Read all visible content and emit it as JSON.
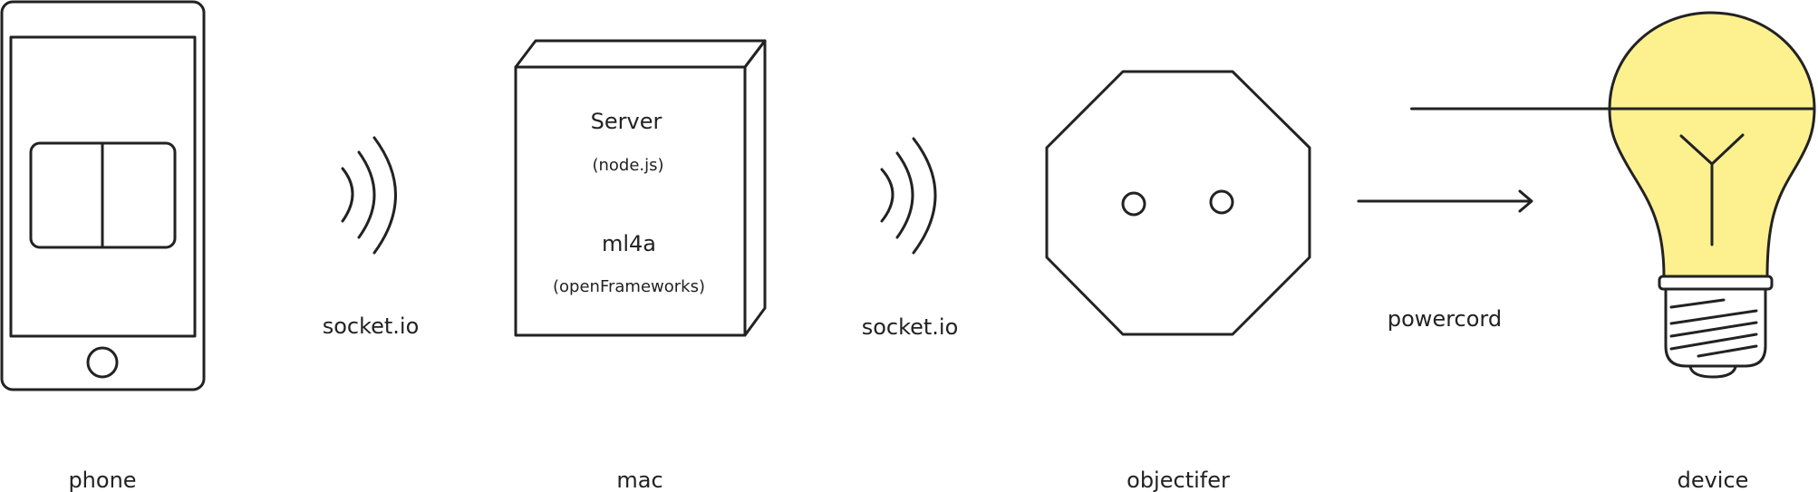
{
  "nodes": {
    "phone": {
      "label": "phone"
    },
    "mac": {
      "label": "mac",
      "line1": "Server",
      "line2": "(node.js)",
      "line3": "ml4a",
      "line4": "(openFrameworks)"
    },
    "objectifer": {
      "label": "objectifer"
    },
    "device": {
      "label": "device"
    }
  },
  "connectors": {
    "phone_to_mac": "socket.io",
    "mac_to_objectifer": "socket.io",
    "objectifer_to_device": "powercord"
  },
  "colors": {
    "stroke": "#222222",
    "bulb_fill": "#FDF08F",
    "background": "#FFFFFF"
  },
  "icons": [
    "phone-icon",
    "wifi-signal-icon",
    "server-box-icon",
    "wifi-signal-icon",
    "outlet-icon",
    "arrow-right-icon",
    "lightbulb-icon"
  ]
}
